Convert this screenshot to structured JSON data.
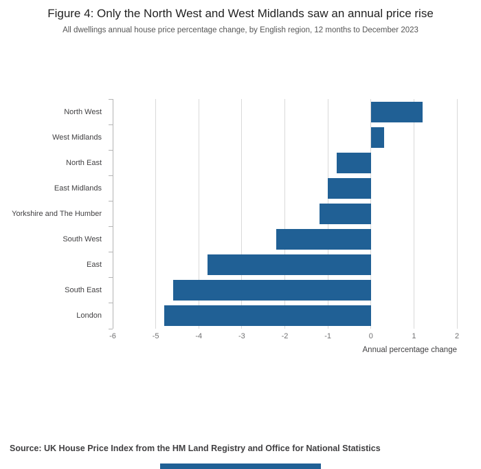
{
  "header": {
    "title": "Figure 4: Only the North West and West Midlands saw an annual price rise",
    "subtitle": "All dwellings annual house price percentage change, by English region, 12 months to December 2023"
  },
  "chart_data": {
    "type": "bar",
    "orientation": "horizontal",
    "title": "Figure 4: Only the North West and West Midlands saw an annual price rise",
    "subtitle": "All dwellings annual house price percentage change, by English region, 12 months to December 2023",
    "categories": [
      "North West",
      "West Midlands",
      "North East",
      "East Midlands",
      "Yorkshire and The Humber",
      "South West",
      "East",
      "South East",
      "London"
    ],
    "values": [
      1.2,
      0.3,
      -0.8,
      -1.0,
      -1.2,
      -2.2,
      -3.8,
      -4.6,
      -4.8
    ],
    "xlabel": "Annual percentage change",
    "ylabel": "",
    "xlim": [
      -6,
      2
    ],
    "xticks": [
      -6,
      -5,
      -4,
      -3,
      -2,
      -1,
      0,
      1,
      2
    ],
    "grid": true,
    "legend": "none",
    "bar_color": "#206095",
    "gridline_color": "#d9d9d9",
    "axis_color": "#b3b3b3"
  },
  "footer": {
    "source": "Source: UK House Price Index from the HM Land Registry and Office for National Statistics",
    "partial_element_color": "#206095"
  }
}
